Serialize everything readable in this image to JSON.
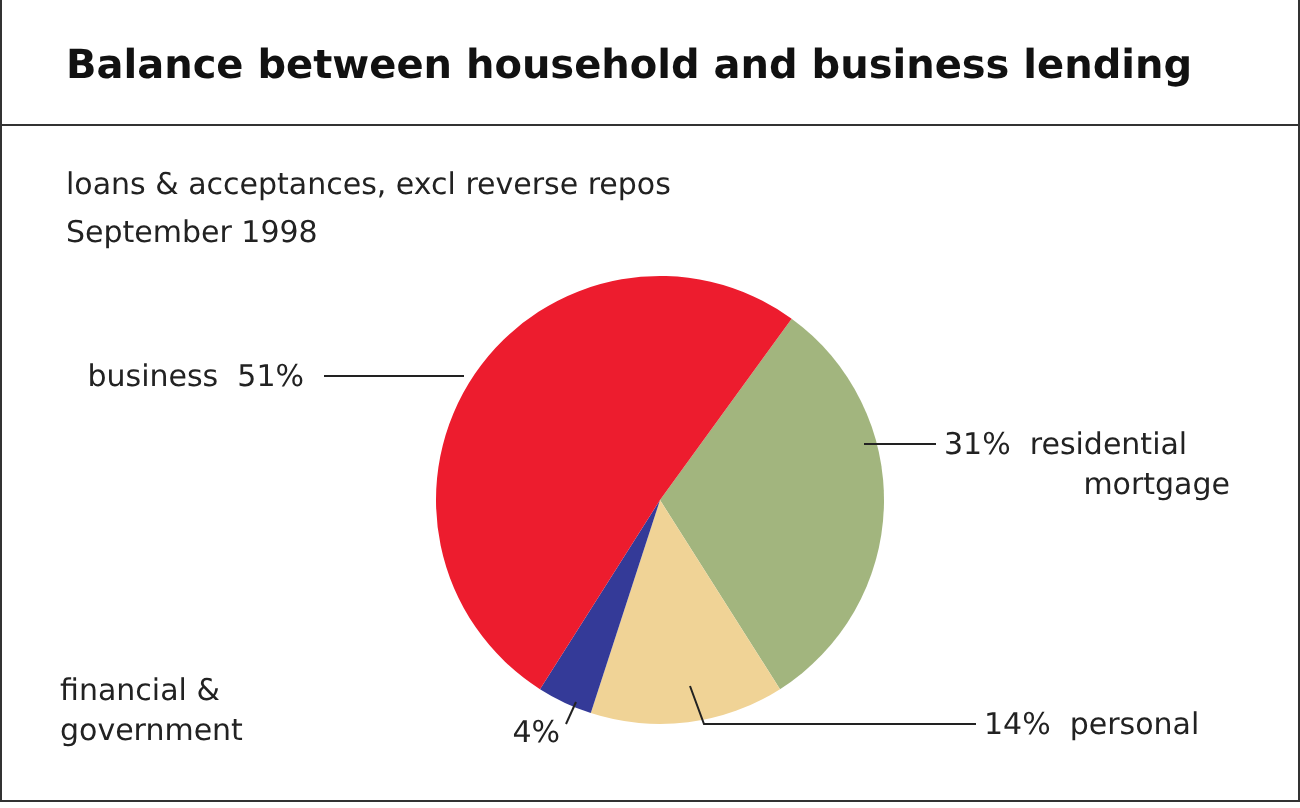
{
  "chart_data": {
    "type": "pie",
    "title": "Balance between household and business lending",
    "subtitle": "loans & acceptances, excl reverse repos",
    "annotations": [
      "September 1998"
    ],
    "categories": [
      "residential mortgage",
      "personal",
      "financial & government",
      "business"
    ],
    "values": [
      31,
      14,
      4,
      51
    ],
    "value_labels": [
      "31%",
      "14%",
      "4%",
      "51%"
    ],
    "colors": [
      "#a2b57e",
      "#f0d396",
      "#343a98",
      "#ed1c2e"
    ]
  }
}
